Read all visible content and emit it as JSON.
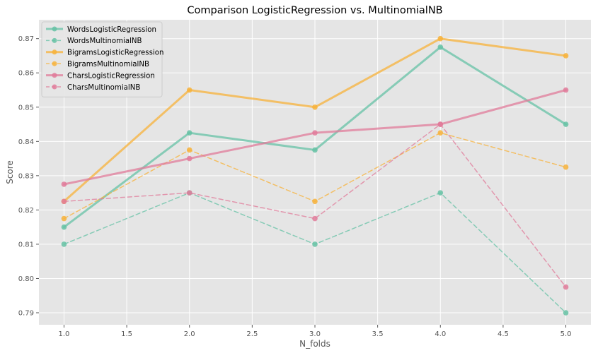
{
  "chart_data": {
    "type": "line",
    "title": "Comparison LogisticRegression vs. MultinomialNB",
    "xlabel": "N_folds",
    "ylabel": "Score",
    "xlim": [
      0.8,
      5.2
    ],
    "ylim": [
      0.7865,
      0.8755
    ],
    "xticks": [
      1.0,
      1.5,
      2.0,
      2.5,
      3.0,
      3.5,
      4.0,
      4.5,
      5.0
    ],
    "xtick_labels": [
      "1.0",
      "1.5",
      "2.0",
      "2.5",
      "3.0",
      "3.5",
      "4.0",
      "4.5",
      "5.0"
    ],
    "yticks": [
      0.79,
      0.8,
      0.81,
      0.82,
      0.83,
      0.84,
      0.85,
      0.86,
      0.87
    ],
    "ytick_labels": [
      "0.79",
      "0.80",
      "0.81",
      "0.82",
      "0.83",
      "0.84",
      "0.85",
      "0.86",
      "0.87"
    ],
    "grid": true,
    "legend_position": "top-left",
    "x": [
      1,
      2,
      3,
      4,
      5
    ],
    "series": [
      {
        "name": "WordsLogisticRegression",
        "color": "#66c2a5",
        "style": "solid",
        "values": [
          0.815,
          0.8425,
          0.8375,
          0.8675,
          0.845
        ]
      },
      {
        "name": "WordsMultinomialNB",
        "color": "#66c2a5",
        "style": "dashed",
        "values": [
          0.81,
          0.825,
          0.81,
          0.825,
          0.79
        ]
      },
      {
        "name": "BigramsLogisticRegression",
        "color": "#f7b239",
        "style": "solid",
        "values": [
          0.8225,
          0.855,
          0.85,
          0.87,
          0.865
        ]
      },
      {
        "name": "BigramsMultinomialNB",
        "color": "#f7b239",
        "style": "dashed",
        "values": [
          0.8175,
          0.8375,
          0.8225,
          0.8425,
          0.8325
        ]
      },
      {
        "name": "CharsLogisticRegression",
        "color": "#e07b9a",
        "style": "solid",
        "values": [
          0.8275,
          0.835,
          0.8425,
          0.845,
          0.855
        ]
      },
      {
        "name": "CharsMultinomialNB",
        "color": "#e07b9a",
        "style": "dashed",
        "values": [
          0.8225,
          0.825,
          0.8175,
          0.845,
          0.7975
        ]
      }
    ]
  }
}
